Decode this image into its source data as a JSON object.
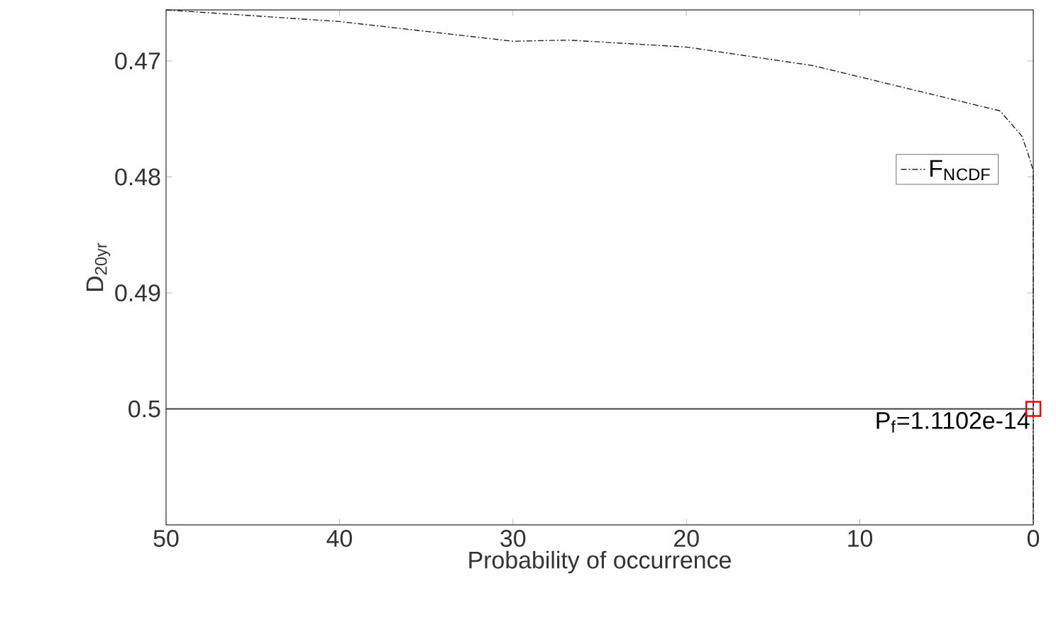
{
  "chart_data": {
    "type": "line",
    "xlabel": "Probability of occurrence",
    "ylabel": "D$_{20yr}$",
    "xlim": [
      50,
      0
    ],
    "ylim": [
      0.51,
      0.4656
    ],
    "xticks": [
      0,
      10,
      20,
      30,
      40,
      50
    ],
    "yticks": [
      0.47,
      0.48,
      0.49,
      0.5
    ],
    "series": [
      {
        "name": "F$_{N}$$_{CDF}$",
        "color": "#222222",
        "line_style": "dashed",
        "x": [
          50,
          40,
          30,
          26.8,
          20,
          12.7,
          1.92,
          0.65,
          0.3,
          0.1,
          0,
          0
        ],
        "values": [
          0.4656,
          0.4666,
          0.4683,
          0.4682,
          0.4688,
          0.4704,
          0.4743,
          0.4765,
          0.478,
          0.479,
          0.4794,
          0.51
        ]
      },
      {
        "type": "scatter",
        "color": "#ff0000",
        "marker": "square",
        "x": [
          0
        ],
        "values": [
          0.5
        ]
      }
    ],
    "ref_lines": [
      {
        "axis": "y",
        "value": 0.5,
        "color": "#404040",
        "line_style": "solid"
      }
    ],
    "annotations": [
      {
        "text": "P$_{f}$=1.1102e-14",
        "x": 0,
        "y": 0.5
      }
    ],
    "legend": "top right"
  }
}
